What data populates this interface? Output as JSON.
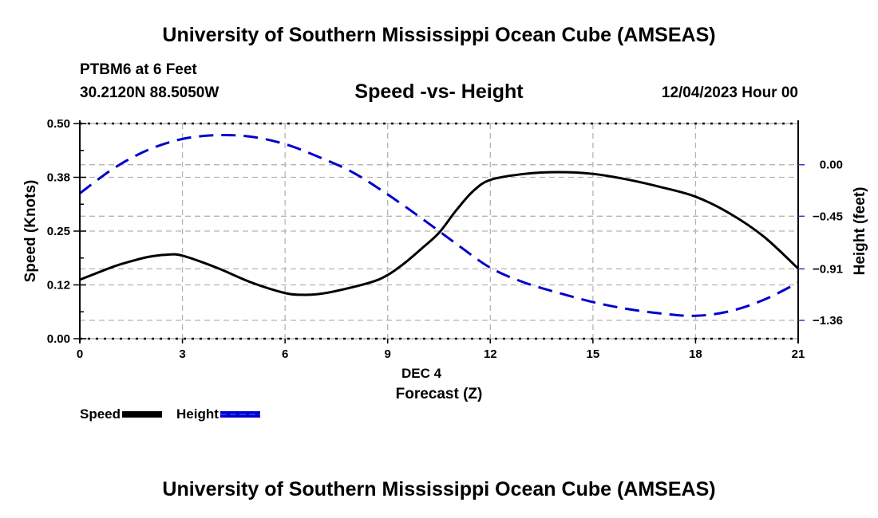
{
  "header": {
    "title": "University of Southern Mississippi Ocean Cube (AMSEAS)",
    "station": "PTBM6 at 6 Feet",
    "coordinates": "30.2120N  88.5050W",
    "subtitle": "Speed -vs- Height",
    "datetime": "12/04/2023 Hour 00"
  },
  "footer": {
    "title": "University of Southern Mississippi Ocean Cube (AMSEAS)"
  },
  "chart_data": {
    "type": "line",
    "title": "Speed -vs- Height",
    "xlabel": "Forecast (Z)",
    "xsublabel": "DEC 4",
    "ylabel": "Speed (Knots)",
    "y2label": "Height (feet)",
    "xlim": [
      0,
      21
    ],
    "ylim": [
      0,
      0.5
    ],
    "y2lim": [
      -1.52,
      0.36
    ],
    "xticks": [
      0,
      3,
      6,
      9,
      12,
      15,
      18,
      21
    ],
    "xtick_labels": [
      "0",
      "3",
      "6",
      "9",
      "12",
      "15",
      "18",
      "21"
    ],
    "yticks": [
      0.0,
      0.125,
      0.25,
      0.375,
      0.5
    ],
    "ytick_labels": [
      "0.00",
      "0.12",
      "0.25",
      "0.38",
      "0.50"
    ],
    "y2ticks": [
      0.0,
      -0.45,
      -0.91,
      -1.36
    ],
    "y2tick_labels": [
      "0.00",
      "−0.45",
      "−0.91",
      "−1.36"
    ],
    "grid": true,
    "legend": "bottom-left",
    "series": [
      {
        "name": "Speed",
        "axis": "left",
        "color": "#000000",
        "style": "solid",
        "x": [
          0,
          1,
          1.5,
          2,
          2.5,
          3,
          4,
          5,
          6,
          6.5,
          7,
          7.5,
          8.5,
          9,
          9.5,
          10,
          10.5,
          11,
          11.5,
          12,
          13,
          14,
          15,
          16,
          17,
          18,
          19,
          20,
          21
        ],
        "values": [
          0.137,
          0.168,
          0.18,
          0.19,
          0.195,
          0.193,
          0.165,
          0.131,
          0.106,
          0.102,
          0.104,
          0.111,
          0.131,
          0.148,
          0.176,
          0.21,
          0.246,
          0.298,
          0.343,
          0.369,
          0.383,
          0.387,
          0.383,
          0.37,
          0.352,
          0.33,
          0.291,
          0.237,
          0.163
        ]
      },
      {
        "name": "Height",
        "axis": "right",
        "color": "#0000cc",
        "style": "dashed",
        "x": [
          0,
          1,
          2,
          3,
          4,
          5,
          6,
          7,
          8,
          9,
          10,
          11,
          12,
          13,
          14,
          15,
          16,
          17,
          18,
          19,
          20,
          21
        ],
        "values": [
          -0.25,
          -0.03,
          0.13,
          0.225,
          0.258,
          0.245,
          0.18,
          0.066,
          -0.07,
          -0.26,
          -0.47,
          -0.69,
          -0.9,
          -1.03,
          -1.12,
          -1.2,
          -1.26,
          -1.3,
          -1.32,
          -1.28,
          -1.18,
          -1.03
        ]
      }
    ]
  }
}
